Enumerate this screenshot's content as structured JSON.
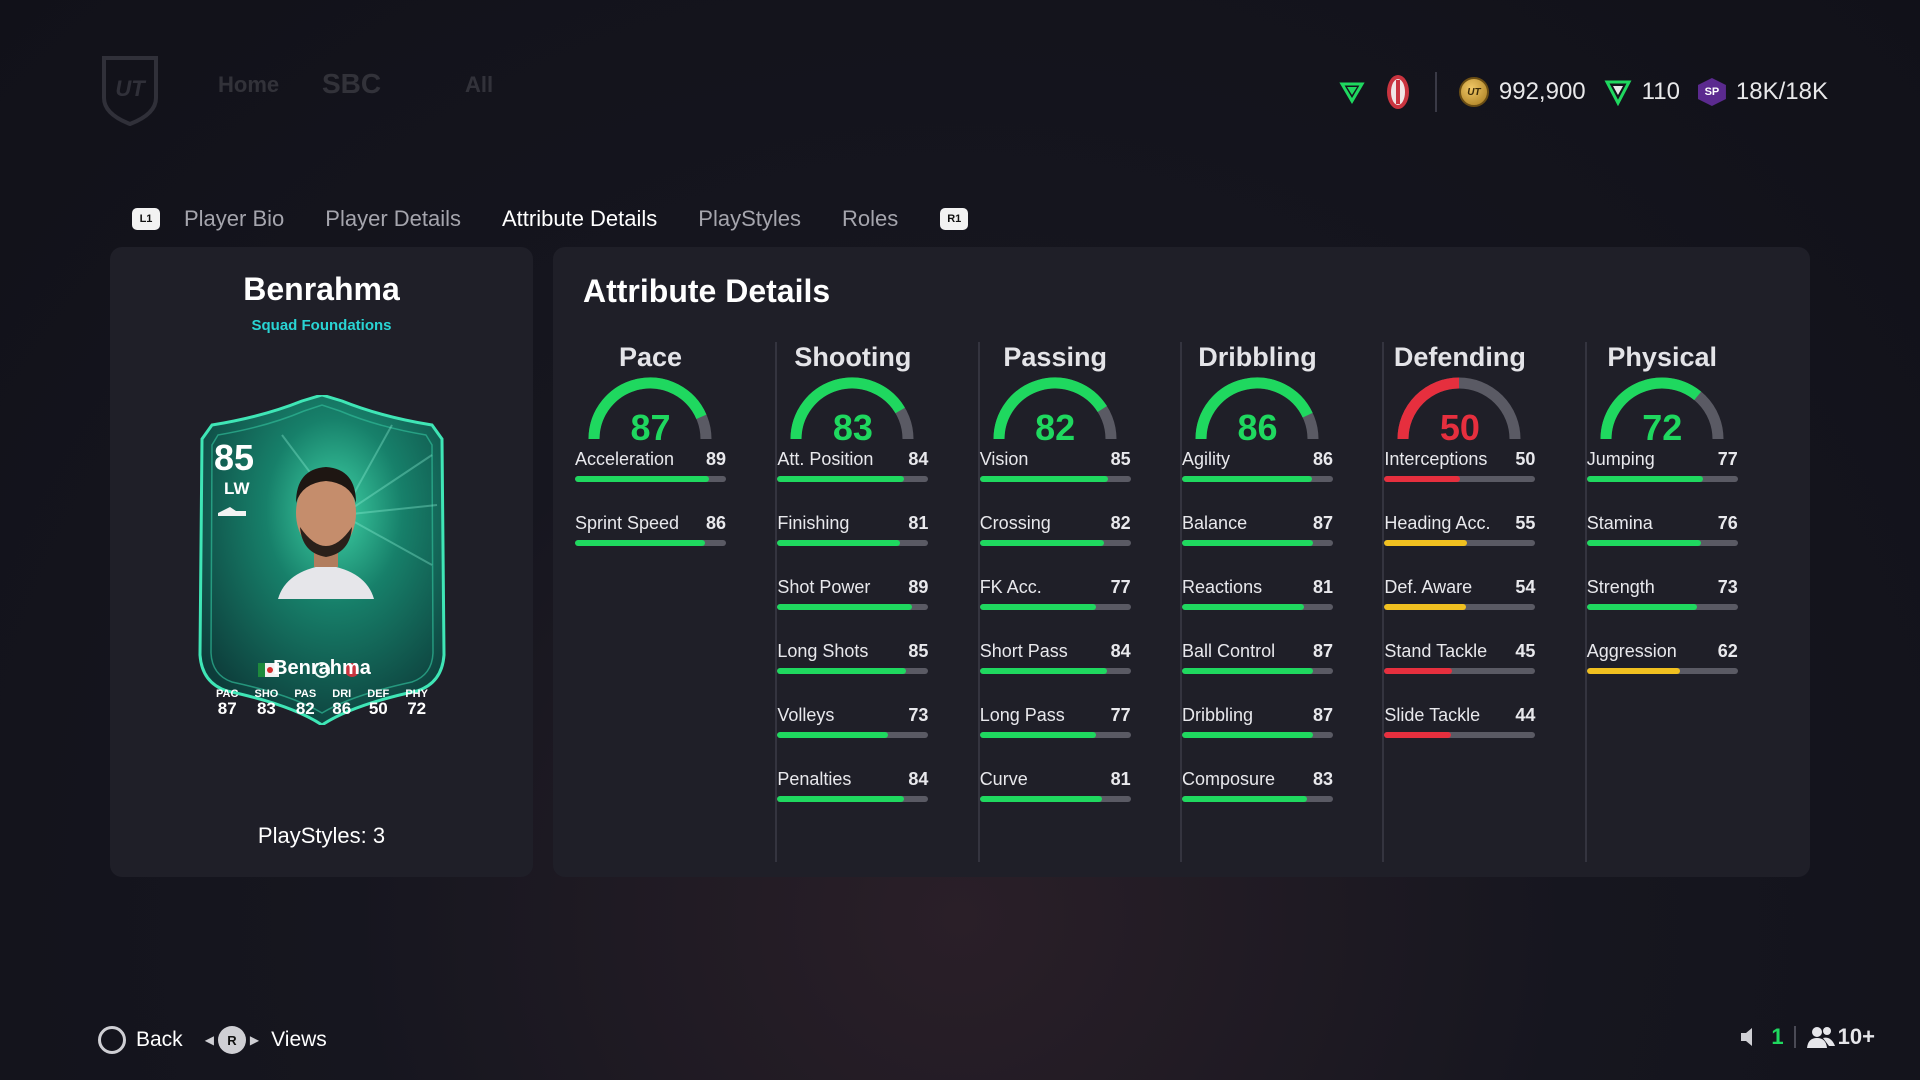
{
  "colors": {
    "green": "#1fd85f",
    "red": "#e62f3e",
    "yellow": "#f0c020",
    "track": "#5a5a64",
    "accent_cyan": "#29d4d4"
  },
  "topbar": {
    "faded_nav": [
      "Home",
      "SBC",
      "All"
    ],
    "currency": {
      "coins": "992,900",
      "points": "110",
      "sp": "18K/18K"
    },
    "icons": [
      "green-shield-icon",
      "club-badge-icon",
      "coin-icon",
      "points-icon",
      "sp-icon"
    ]
  },
  "tabs": {
    "left_button": "L1",
    "right_button": "R1",
    "items": [
      "Player Bio",
      "Player Details",
      "Attribute Details",
      "PlayStyles",
      "Roles"
    ],
    "active": "Attribute Details"
  },
  "player": {
    "name": "Benrahma",
    "subtitle": "Squad Foundations",
    "playstyles_label": "PlayStyles: 3",
    "card": {
      "rating": "85",
      "position": "LW",
      "name": "Benrahma",
      "stats": [
        {
          "label": "PAC",
          "value": "87"
        },
        {
          "label": "SHO",
          "value": "83"
        },
        {
          "label": "PAS",
          "value": "82"
        },
        {
          "label": "DRI",
          "value": "86"
        },
        {
          "label": "DEF",
          "value": "50"
        },
        {
          "label": "PHY",
          "value": "72"
        }
      ]
    }
  },
  "attributes": {
    "title": "Attribute Details",
    "categories": [
      {
        "name": "Pace",
        "value": 87,
        "items": [
          {
            "name": "Acceleration",
            "value": 89
          },
          {
            "name": "Sprint Speed",
            "value": 86
          }
        ]
      },
      {
        "name": "Shooting",
        "value": 83,
        "items": [
          {
            "name": "Att. Position",
            "value": 84
          },
          {
            "name": "Finishing",
            "value": 81
          },
          {
            "name": "Shot Power",
            "value": 89
          },
          {
            "name": "Long Shots",
            "value": 85
          },
          {
            "name": "Volleys",
            "value": 73
          },
          {
            "name": "Penalties",
            "value": 84
          }
        ]
      },
      {
        "name": "Passing",
        "value": 82,
        "items": [
          {
            "name": "Vision",
            "value": 85
          },
          {
            "name": "Crossing",
            "value": 82
          },
          {
            "name": "FK Acc.",
            "value": 77
          },
          {
            "name": "Short Pass",
            "value": 84
          },
          {
            "name": "Long Pass",
            "value": 77
          },
          {
            "name": "Curve",
            "value": 81
          }
        ]
      },
      {
        "name": "Dribbling",
        "value": 86,
        "items": [
          {
            "name": "Agility",
            "value": 86
          },
          {
            "name": "Balance",
            "value": 87
          },
          {
            "name": "Reactions",
            "value": 81
          },
          {
            "name": "Ball Control",
            "value": 87
          },
          {
            "name": "Dribbling",
            "value": 87
          },
          {
            "name": "Composure",
            "value": 83
          }
        ]
      },
      {
        "name": "Defending",
        "value": 50,
        "items": [
          {
            "name": "Interceptions",
            "value": 50
          },
          {
            "name": "Heading Acc.",
            "value": 55
          },
          {
            "name": "Def. Aware",
            "value": 54
          },
          {
            "name": "Stand Tackle",
            "value": 45
          },
          {
            "name": "Slide Tackle",
            "value": 44
          }
        ]
      },
      {
        "name": "Physical",
        "value": 72,
        "items": [
          {
            "name": "Jumping",
            "value": 77
          },
          {
            "name": "Stamina",
            "value": 76
          },
          {
            "name": "Strength",
            "value": 73
          },
          {
            "name": "Aggression",
            "value": 62
          }
        ]
      }
    ]
  },
  "footer": {
    "back_label": "Back",
    "views_label": "Views",
    "r_button": "R",
    "online_count": "1",
    "friends_count": "10+"
  }
}
